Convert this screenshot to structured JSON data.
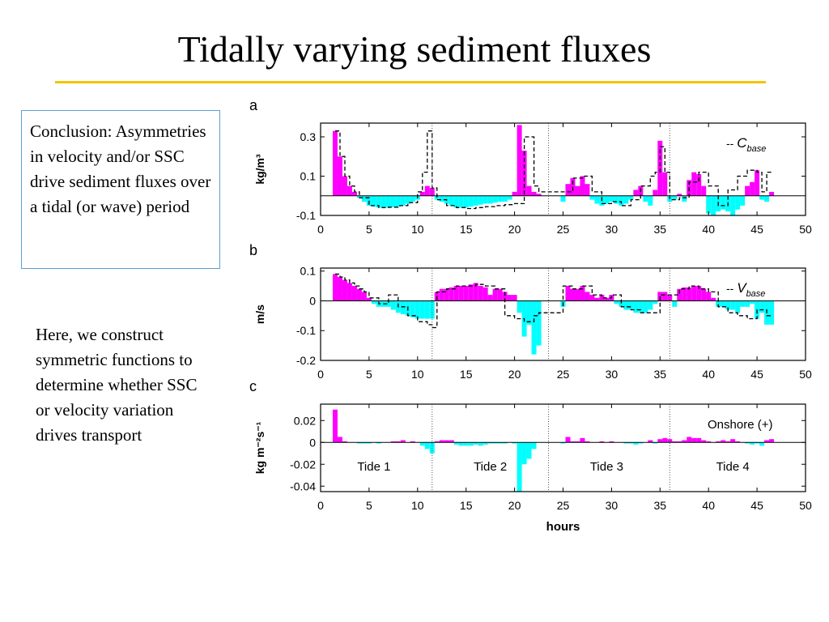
{
  "slide": {
    "title": "Tidally varying sediment fluxes",
    "title_rule_color": "#f2c400",
    "conclusion_text": "Conclusion: Asymmetries in velocity and/or SSC drive sediment fluxes over a tidal (or wave) period",
    "construct_text": "Here, we construct symmetric functions to determine whether SSC or velocity variation drives transport"
  },
  "colors": {
    "positive": "#ff00ff",
    "negative": "#00ffff",
    "baseline": "#000000"
  },
  "chart_data": [
    {
      "type": "bar",
      "panel_label": "a",
      "ylabel": "kg/m³",
      "xlim": [
        0,
        50
      ],
      "ylim": [
        -0.1,
        0.37
      ],
      "yticks": [
        0.3,
        0.1,
        -0.1
      ],
      "ytick_labels": [
        "0.3",
        "0.1",
        "-0.1"
      ],
      "xticks": [
        0,
        5,
        10,
        15,
        20,
        25,
        30,
        35,
        40,
        45,
        50
      ],
      "tide_boundaries": [
        11.5,
        23.5,
        36
      ],
      "legend": "-- C_base",
      "legend_dash": "--",
      "legend_symbol": "C",
      "legend_subscript": "base",
      "series": [
        {
          "x": [
            1.5,
            2,
            2.5,
            3,
            3.5,
            4,
            4.5,
            5,
            5.5,
            6,
            6.5,
            7,
            7.5,
            8,
            8.5,
            9,
            9.5,
            10,
            10.5,
            11,
            11.5,
            12,
            12.5,
            13,
            13.5,
            14,
            14.5,
            15,
            15.5,
            16,
            16.5,
            17,
            17.5,
            18,
            18.5,
            19,
            19.5,
            20,
            20.5,
            21,
            21.5,
            22,
            22.5,
            25,
            25.5,
            26,
            26.5,
            27,
            27.5,
            28,
            28.5,
            29,
            29.5,
            30,
            30.5,
            31,
            31.5,
            32,
            32.5,
            33,
            33.5,
            34,
            34.5,
            35,
            35.5,
            36,
            36.5,
            37,
            37.5,
            38,
            38.5,
            39,
            39.5,
            40,
            40.5,
            41,
            41.5,
            42,
            42.5,
            43,
            43.5,
            44,
            44.5,
            45,
            45.5,
            46,
            46.5
          ],
          "values": [
            0.33,
            0.2,
            0.1,
            0.05,
            0.02,
            -0.01,
            -0.03,
            -0.05,
            -0.055,
            -0.06,
            -0.06,
            -0.06,
            -0.058,
            -0.055,
            -0.05,
            -0.04,
            -0.03,
            -0.02,
            0.02,
            0.05,
            0.04,
            -0.02,
            -0.03,
            -0.04,
            -0.05,
            -0.06,
            -0.06,
            -0.06,
            -0.055,
            -0.05,
            -0.045,
            -0.04,
            -0.04,
            -0.035,
            -0.03,
            -0.03,
            -0.02,
            0.02,
            0.36,
            0.23,
            0.05,
            0.02,
            0.01,
            -0.03,
            0.06,
            0.09,
            0.05,
            0.1,
            0.06,
            -0.02,
            -0.04,
            -0.05,
            -0.04,
            -0.03,
            -0.04,
            -0.05,
            -0.04,
            -0.02,
            0.03,
            0.05,
            -0.03,
            -0.05,
            0.03,
            0.28,
            0.12,
            -0.03,
            -0.02,
            0.01,
            -0.03,
            0.08,
            0.12,
            0.11,
            0.05,
            -0.09,
            -0.1,
            -0.08,
            -0.07,
            -0.08,
            -0.1,
            -0.07,
            -0.05,
            0.05,
            0.07,
            0.13,
            -0.02,
            -0.03,
            0.02
          ]
        },
        {
          "name": "C_base",
          "x": [
            1.5,
            2,
            2.5,
            3,
            3.5,
            4,
            5,
            6,
            7,
            8,
            9,
            10,
            10.5,
            11,
            11.5,
            12,
            13,
            14,
            15,
            16,
            17,
            18,
            19,
            20,
            21,
            22,
            22.5,
            25,
            26,
            27,
            28,
            29,
            30,
            31,
            32,
            33,
            34,
            34.5,
            35,
            35.5,
            36,
            37,
            38,
            39,
            40,
            41,
            42,
            43,
            44,
            45,
            45.5,
            46,
            46.5
          ],
          "values": [
            0.33,
            0.2,
            0.1,
            0.05,
            0.02,
            -0.01,
            -0.05,
            -0.06,
            -0.058,
            -0.05,
            -0.035,
            0.02,
            0.12,
            0.33,
            0.04,
            -0.02,
            -0.05,
            -0.06,
            -0.065,
            -0.06,
            -0.055,
            -0.05,
            -0.045,
            -0.04,
            0.3,
            0.05,
            0.02,
            0.02,
            0.09,
            0.1,
            0.02,
            -0.04,
            -0.03,
            -0.05,
            -0.02,
            0.05,
            0.1,
            0.12,
            0.25,
            0.12,
            -0.02,
            -0.01,
            0.07,
            0.12,
            0.05,
            -0.05,
            0.03,
            0.1,
            0.13,
            0.12,
            0.02,
            0.12,
            0.12
          ]
        }
      ]
    },
    {
      "type": "bar",
      "panel_label": "b",
      "ylabel": "m/s",
      "xlim": [
        0,
        50
      ],
      "ylim": [
        -0.2,
        0.11
      ],
      "yticks": [
        0.1,
        0,
        -0.1,
        -0.2
      ],
      "ytick_labels": [
        "0.1",
        "0",
        "-0.1",
        "-0.2"
      ],
      "xticks": [
        0,
        5,
        10,
        15,
        20,
        25,
        30,
        35,
        40,
        45,
        50
      ],
      "tide_boundaries": [
        11.5,
        23.5,
        36
      ],
      "legend": "-- V_base",
      "legend_dash": "--",
      "legend_symbol": "V",
      "legend_subscript": "base",
      "series": [
        {
          "x": [
            1.5,
            2,
            2.5,
            3,
            3.5,
            4,
            4.5,
            5,
            5.5,
            6,
            6.5,
            7,
            7.5,
            8,
            8.5,
            9,
            9.5,
            10,
            10.5,
            11,
            11.5,
            12,
            12.5,
            13,
            13.5,
            14,
            14.5,
            15,
            15.5,
            16,
            16.5,
            17,
            17.5,
            18,
            18.5,
            19,
            19.5,
            20,
            20.5,
            21,
            21.5,
            22,
            22.5,
            25,
            25.5,
            26,
            26.5,
            27,
            27.5,
            28,
            28.5,
            29,
            29.5,
            30,
            30.5,
            31,
            31.5,
            32,
            32.5,
            33,
            33.5,
            34,
            34.5,
            35,
            35.5,
            36,
            36.5,
            37,
            37.5,
            38,
            38.5,
            39,
            39.5,
            40,
            40.5,
            41,
            41.5,
            42,
            42.5,
            43,
            43.5,
            44,
            44.5,
            45,
            45.5,
            46,
            46.5
          ],
          "values": [
            0.09,
            0.08,
            0.07,
            0.06,
            0.05,
            0.04,
            0.03,
            0.01,
            -0.01,
            -0.02,
            -0.02,
            -0.02,
            -0.03,
            -0.04,
            -0.045,
            -0.05,
            -0.055,
            -0.06,
            -0.06,
            -0.06,
            -0.06,
            0.03,
            0.04,
            0.04,
            0.045,
            0.05,
            0.05,
            0.05,
            0.055,
            0.06,
            0.05,
            0.045,
            0.02,
            0.04,
            0.04,
            0.03,
            0.02,
            0.02,
            -0.04,
            -0.12,
            -0.08,
            -0.18,
            -0.15,
            -0.02,
            0.05,
            0.04,
            0.04,
            0.05,
            0.03,
            0.02,
            0.01,
            0.02,
            0.01,
            0.02,
            -0.01,
            -0.02,
            -0.03,
            -0.03,
            -0.04,
            -0.04,
            -0.04,
            -0.03,
            -0.01,
            0.03,
            0.03,
            0.02,
            -0.02,
            0.04,
            0.045,
            0.045,
            0.05,
            0.05,
            0.04,
            0.03,
            0.01,
            -0.02,
            -0.02,
            -0.03,
            -0.03,
            -0.04,
            -0.02,
            -0.02,
            -0.01,
            -0.06,
            -0.04,
            -0.08,
            -0.08
          ]
        },
        {
          "name": "V_base",
          "x": [
            1.5,
            2,
            2.5,
            3,
            3.5,
            4,
            4.5,
            5,
            6,
            7,
            8,
            9,
            10,
            11,
            11.5,
            12,
            13,
            14,
            15,
            16,
            17,
            18,
            18.5,
            19,
            20,
            21,
            22,
            22.5,
            25,
            26,
            27,
            28,
            29,
            30,
            31,
            32,
            33,
            34,
            35,
            36,
            37,
            38,
            39,
            40,
            41,
            42,
            43,
            44,
            45,
            46,
            46.5
          ],
          "values": [
            0.09,
            0.08,
            0.07,
            0.06,
            0.05,
            0.04,
            0.03,
            0.01,
            -0.01,
            0.02,
            -0.02,
            -0.05,
            -0.07,
            -0.08,
            -0.09,
            0.03,
            0.04,
            0.05,
            0.05,
            0.055,
            0.05,
            0.04,
            0.04,
            -0.05,
            -0.06,
            -0.07,
            -0.05,
            -0.04,
            0.05,
            0.04,
            0.05,
            0.02,
            0.01,
            0.02,
            -0.02,
            -0.03,
            -0.04,
            -0.04,
            0.02,
            0.02,
            0.04,
            0.05,
            0.04,
            0.03,
            -0.02,
            -0.04,
            -0.05,
            -0.06,
            -0.03,
            -0.05,
            -0.05
          ]
        }
      ]
    },
    {
      "type": "bar",
      "panel_label": "c",
      "ylabel": "kg m⁻²s⁻¹",
      "xlabel": "hours",
      "xlim": [
        0,
        50
      ],
      "ylim": [
        -0.045,
        0.035
      ],
      "yticks": [
        0.02,
        0,
        -0.02,
        -0.04
      ],
      "ytick_labels": [
        "0.02",
        "0",
        "-0.02",
        "-0.04"
      ],
      "xticks": [
        0,
        5,
        10,
        15,
        20,
        25,
        30,
        35,
        40,
        45,
        50
      ],
      "tide_boundaries": [
        11.5,
        23.5,
        36
      ],
      "annotations": [
        "Onshore (+)",
        "Tide 1",
        "Tide 2",
        "Tide 3",
        "Tide 4"
      ],
      "series": [
        {
          "x": [
            1.5,
            2,
            2.5,
            3,
            3.5,
            4,
            4.5,
            5,
            5.5,
            6,
            6.5,
            7,
            7.5,
            8,
            8.5,
            9,
            9.5,
            10,
            10.5,
            11,
            11.5,
            12,
            12.5,
            13,
            13.5,
            14,
            14.5,
            15,
            15.5,
            16,
            16.5,
            17,
            17.5,
            18,
            18.5,
            19,
            19.5,
            20,
            20.5,
            21,
            21.5,
            22,
            22.5,
            25,
            25.5,
            26,
            26.5,
            27,
            27.5,
            28,
            28.5,
            29,
            29.5,
            30,
            30.5,
            31,
            31.5,
            32,
            32.5,
            33,
            33.5,
            34,
            34.5,
            35,
            35.5,
            36,
            36.5,
            37,
            37.5,
            38,
            38.5,
            39,
            39.5,
            40,
            40.5,
            41,
            41.5,
            42,
            42.5,
            43,
            43.5,
            44,
            44.5,
            45,
            45.5,
            46,
            46.5
          ],
          "values": [
            0.03,
            0.005,
            0.001,
            0,
            0,
            -0.001,
            -0.001,
            -0.001,
            0,
            -0.001,
            0,
            0,
            0.001,
            0.001,
            0.002,
            0,
            0.001,
            0,
            -0.003,
            -0.006,
            -0.01,
            0.001,
            0.002,
            0.002,
            0.002,
            -0.002,
            -0.003,
            -0.003,
            -0.003,
            -0.002,
            -0.003,
            -0.002,
            -0.001,
            -0.001,
            -0.001,
            -0.001,
            0,
            -0.001,
            -0.045,
            -0.02,
            -0.015,
            -0.006,
            0,
            -0.001,
            0.005,
            0.001,
            0.001,
            0.004,
            0.001,
            0,
            0,
            0.001,
            0,
            0.001,
            0,
            0,
            -0.001,
            -0.001,
            -0.002,
            -0.001,
            0,
            0.002,
            -0.001,
            0.003,
            0.004,
            0.003,
            0.001,
            0.001,
            0.002,
            0.005,
            0.004,
            0.004,
            0.002,
            0.001,
            0,
            0.001,
            0.002,
            0.001,
            0.003,
            0.001,
            0,
            -0.001,
            -0.002,
            -0.001,
            -0.003,
            0.002,
            0.003
          ]
        }
      ]
    }
  ]
}
